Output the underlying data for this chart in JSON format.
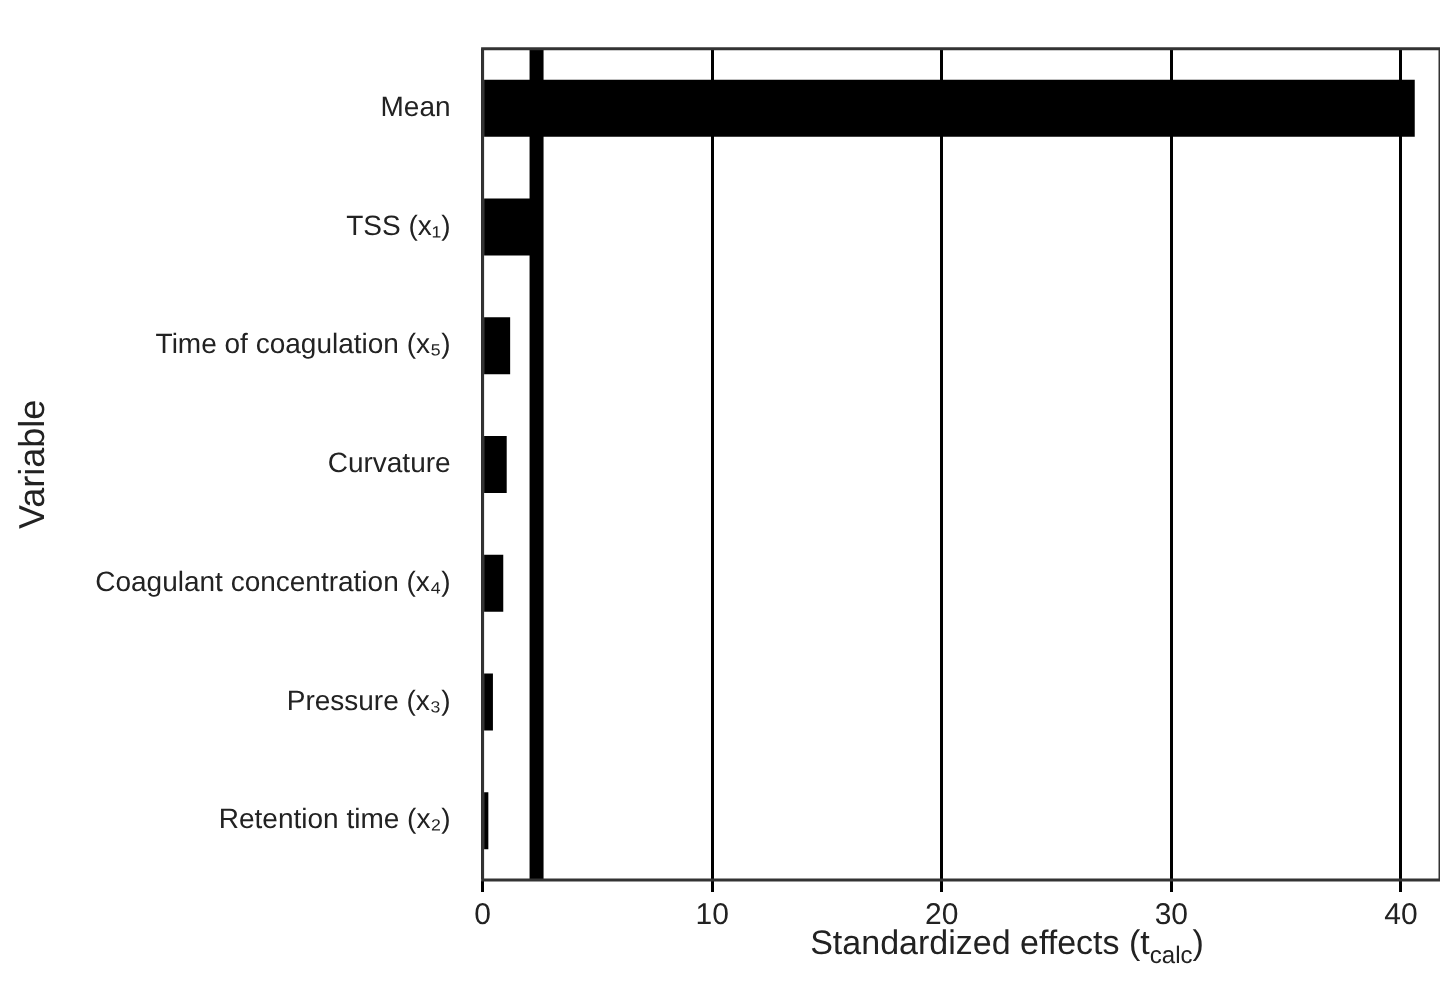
{
  "chart_data": {
    "type": "bar",
    "orientation": "horizontal",
    "categories": [
      "Mean",
      "TSS (x₁)",
      "Time of coagulation (x₅)",
      "Curvature",
      "Coagulant concentration (x₄)",
      "Pressure (x₃)",
      "Retention time (x₂)"
    ],
    "values": [
      40.6,
      2.25,
      1.2,
      1.05,
      0.9,
      0.45,
      0.25
    ],
    "color": "#000000",
    "xlabel": "Standardized effects (t$_{calc}$)",
    "ylabel": "Variable",
    "xlim": [
      0,
      41.7
    ],
    "xticks": [
      0,
      10,
      20,
      30,
      40
    ],
    "ref_lines": [
      {
        "axis": "x",
        "value": 2.35,
        "color": "#000000"
      }
    ],
    "grid": "x",
    "legend": false
  }
}
